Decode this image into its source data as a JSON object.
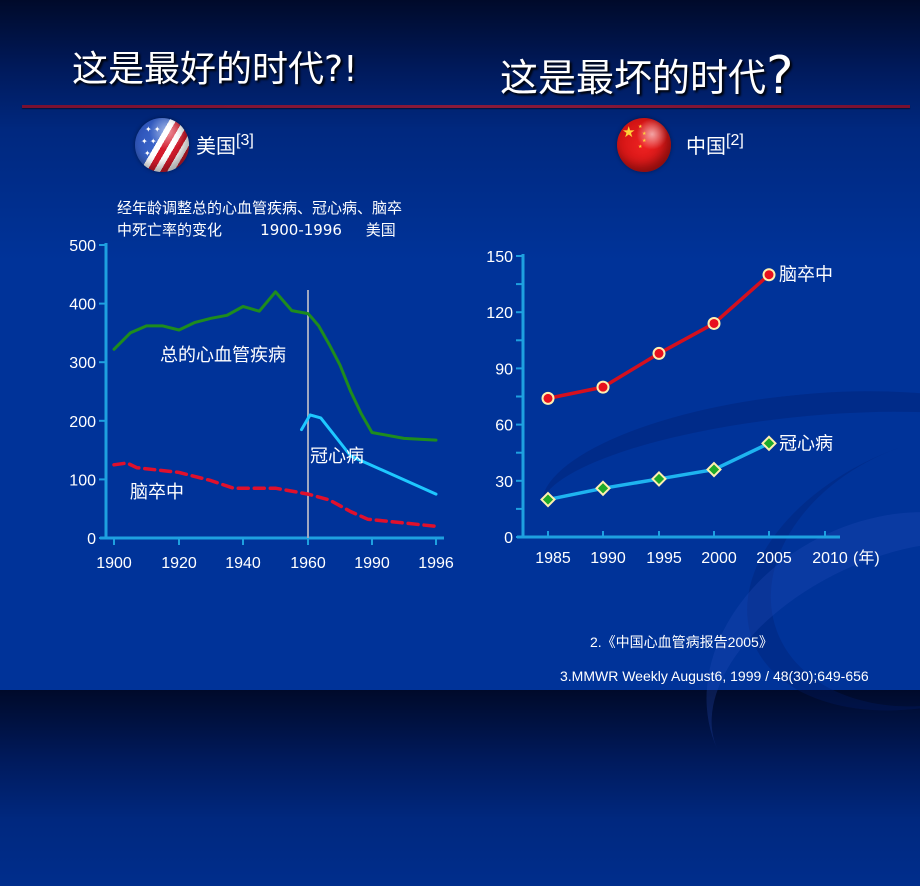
{
  "slide": {
    "title_left": "这是最好的时代?!",
    "title_right_text": "这是最坏的时代",
    "title_right_mark": "?",
    "colors": {
      "background": "#003399",
      "divider": "#8a1a3a",
      "axis": "#1ea0e0",
      "total_cvd_line": "#1e8c1e",
      "chd_line_us": "#1ec8ff",
      "stroke_line_us": "#e0102c",
      "stroke_line_cn": "#d4101e",
      "chd_line_cn": "#1eb4f0",
      "marker_fill_stroke": "#e8101e",
      "marker_fill_chd": "#1eaa28",
      "marker_edge": "#fff0b0"
    }
  },
  "usa": {
    "flag_icon": "usa-flag-icon",
    "label": "美国",
    "ref": "[3]",
    "description_line1": "经年龄调整总的心血管疾病、冠心病、脑卒",
    "description_line2": "中死亡率的变化        1900-1996     美国"
  },
  "china": {
    "flag_icon": "china-flag-icon",
    "label": "中国",
    "ref": "[2]"
  },
  "references": {
    "ref2": "2.《中国心血管病报告2005》",
    "ref3": "3.MMWR Weekly  August6, 1999 / 48(30);649-656"
  },
  "chart_data": [
    {
      "type": "line",
      "title": "经年龄调整总的心血管疾病、冠心病、脑卒中死亡率的变化 1900-1996 美国",
      "xlabel": "",
      "ylabel": "",
      "ylim": [
        0,
        500
      ],
      "yticks": [
        "0",
        "100",
        "200",
        "300",
        "400",
        "500"
      ],
      "xticks": [
        "1900",
        "1920",
        "1940",
        "1960",
        "1990",
        "1996"
      ],
      "grid": false,
      "legend": "inline labels",
      "annotations": [
        {
          "type": "vertical_line",
          "x": 1960,
          "color": "#a0a8c0"
        }
      ],
      "series": [
        {
          "name": "总的心血管疾病",
          "style": "solid",
          "color": "#1e8c1e",
          "x": [
            1900,
            1905,
            1910,
            1915,
            1920,
            1925,
            1930,
            1935,
            1940,
            1942,
            1945,
            1950,
            1955,
            1960,
            1962,
            1965,
            1970,
            1975,
            1980,
            1985,
            1990,
            1993,
            1996
          ],
          "values": [
            322,
            350,
            362,
            362,
            355,
            368,
            375,
            380,
            395,
            392,
            387,
            420,
            388,
            383,
            375,
            362,
            330,
            295,
            250,
            212,
            180,
            170,
            167
          ]
        },
        {
          "name": "冠心病",
          "style": "solid",
          "color": "#1ec8ff",
          "x": [
            1958,
            1961,
            1966,
            1980,
            1996
          ],
          "values": [
            185,
            210,
            205,
            140,
            75
          ]
        },
        {
          "name": "脑卒中",
          "style": "dashed",
          "color": "#e0102c",
          "x": [
            1900,
            1904,
            1907,
            1915,
            1920,
            1930,
            1937,
            1950,
            1960,
            1970,
            1980,
            1988,
            1996
          ],
          "values": [
            125,
            128,
            120,
            115,
            112,
            98,
            85,
            85,
            75,
            65,
            45,
            32,
            20
          ]
        }
      ]
    },
    {
      "type": "line",
      "title": "中国",
      "xlabel": "(年)",
      "ylabel": "",
      "ylim": [
        0,
        150
      ],
      "yticks": [
        "0",
        "30",
        "60",
        "90",
        "120",
        "150"
      ],
      "categories": [
        "1985",
        "1990",
        "1995",
        "2000",
        "2005",
        "2010"
      ],
      "grid": false,
      "legend": "inline labels",
      "series": [
        {
          "name": "脑卒中",
          "marker": "circle",
          "color": "#d4101e",
          "values": [
            74,
            80,
            98,
            114,
            140,
            null
          ]
        },
        {
          "name": "冠心病",
          "marker": "diamond",
          "color": "#1eb4f0",
          "values": [
            20,
            26,
            31,
            36,
            50,
            null
          ]
        }
      ]
    }
  ]
}
